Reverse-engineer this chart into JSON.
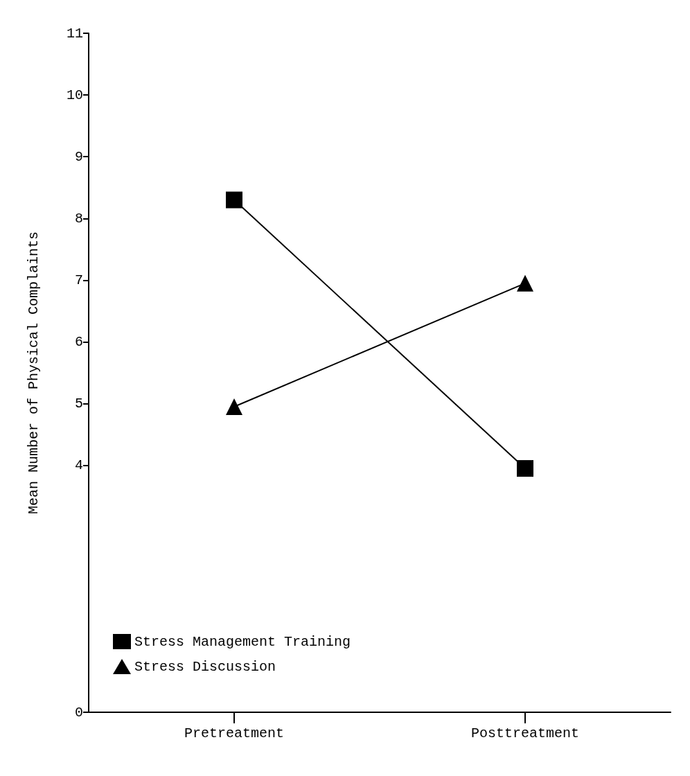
{
  "chart_data": {
    "type": "line",
    "ylabel": "Mean Number of Physical Complaints",
    "categories": [
      "Pretreatment",
      "Posttreatment"
    ],
    "series": [
      {
        "name": "Stress Management Training",
        "color": "#000000",
        "marker": "square",
        "values": [
          8.3,
          3.95
        ]
      },
      {
        "name": "Stress Discussion",
        "color": "#000000",
        "marker": "triangle",
        "values": [
          4.95,
          6.95
        ]
      }
    ],
    "ylim": [
      0,
      11
    ],
    "yticks": [
      0,
      4,
      5,
      6,
      7,
      8,
      9,
      10,
      11
    ],
    "grid": false,
    "legend": "bottom left",
    "line_style": "solid"
  }
}
